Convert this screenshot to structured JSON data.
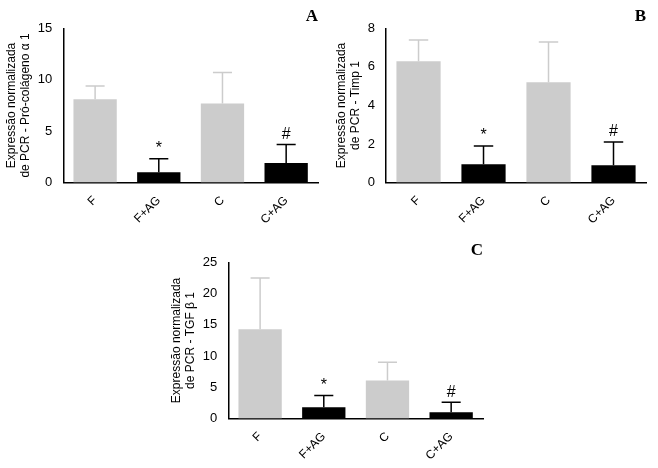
{
  "chart_data": [
    {
      "type": "bar",
      "title": "A",
      "y_label": [
        "Expressão normalizada",
        "de PCR - Pró-colágeno α 1"
      ],
      "categories": [
        "F",
        "F+AG",
        "C",
        "C+AG"
      ],
      "values": [
        8.1,
        1.0,
        7.7,
        1.9
      ],
      "errors": [
        1.3,
        1.3,
        3.0,
        1.8
      ],
      "colors": [
        "#cccccc",
        "#000000",
        "#cccccc",
        "#000000"
      ],
      "ylim": [
        0,
        15
      ],
      "yticks": [
        0,
        5,
        10,
        15
      ],
      "grid": false,
      "annotations": [
        {
          "category": "F+AG",
          "text": "*"
        },
        {
          "category": "C+AG",
          "text": "#"
        }
      ]
    },
    {
      "type": "bar",
      "title": "B",
      "y_label": [
        "Expressão normalizada",
        "de PCR - Timp 1"
      ],
      "categories": [
        "F",
        "F+AG",
        "C",
        "C+AG"
      ],
      "values": [
        6.3,
        0.95,
        5.2,
        0.9
      ],
      "errors": [
        1.1,
        0.95,
        2.1,
        1.2
      ],
      "colors": [
        "#cccccc",
        "#000000",
        "#cccccc",
        "#000000"
      ],
      "ylim": [
        0,
        8
      ],
      "yticks": [
        0,
        2,
        4,
        6,
        8
      ],
      "grid": false,
      "annotations": [
        {
          "category": "F+AG",
          "text": "*"
        },
        {
          "category": "C+AG",
          "text": "#"
        }
      ]
    },
    {
      "type": "bar",
      "title": "C",
      "y_label": [
        "Expressão normalizada",
        "de PCR - TGF β 1"
      ],
      "categories": [
        "F",
        "F+AG",
        "C",
        "C+AG"
      ],
      "values": [
        14.3,
        1.8,
        6.1,
        1.0
      ],
      "errors": [
        8.2,
        1.9,
        2.9,
        1.6
      ],
      "colors": [
        "#cccccc",
        "#000000",
        "#cccccc",
        "#000000"
      ],
      "ylim": [
        0,
        25
      ],
      "yticks": [
        0,
        5,
        10,
        15,
        20,
        25
      ],
      "grid": false,
      "annotations": [
        {
          "category": "F+AG",
          "text": "*"
        },
        {
          "category": "C+AG",
          "text": "#"
        }
      ]
    }
  ]
}
